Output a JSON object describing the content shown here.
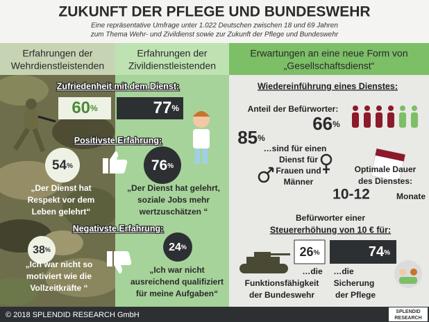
{
  "header": {
    "title": "ZUKUNFT DER PFLEGE UND BUNDESWEHR",
    "subtitle": [
      "Eine repräsentative Umfrage unter 1.022 Deutschen zwischen 18 und 69 Jahren",
      "zum Thema Wehr- und Zivildienst sowie zur Zukunft der Pflege und Bundeswehr"
    ]
  },
  "columns": [
    [
      "Erfahrungen der",
      "Wehrdienstleistenden"
    ],
    [
      "Erfahrungen der",
      "Zivildienstleistenden"
    ],
    [
      "Erwartungen an eine neue Form von",
      "„Gesellschaftsdienst“"
    ]
  ],
  "experience": {
    "satisfaction": {
      "label": "Zufriedenheit mit dem Dienst:",
      "wehr": "60",
      "zivil": "77",
      "unit": "%"
    },
    "positive": {
      "label": "Positivste Erfahrung:",
      "wehr": "54",
      "zivil": "76",
      "wehr_quote": [
        "„Der Dienst hat",
        "Respekt vor dem",
        "Leben gelehrt“"
      ],
      "zivil_quote": [
        "„Der Dienst hat gelehrt,",
        "soziale Jobs mehr",
        "wertzuschätzen “"
      ]
    },
    "negative": {
      "label": "Negativste Erfahrung:",
      "wehr": "38",
      "zivil": "24",
      "wehr_quote": [
        "„Ich war nicht so",
        "motiviert wie die",
        "Vollzeitkräfte “"
      ],
      "zivil_quote": [
        "„Ich war nicht",
        "ausreichend qualifiziert",
        "für meine Aufgaben“"
      ]
    }
  },
  "expectations": {
    "reintroduction": "Wiedereinführung eines Dienstes:",
    "supporters_label": "Anteil der Befürworter:",
    "supporters": "66",
    "both_genders": "85",
    "both_genders_text": [
      "…sind für einen",
      "Dienst für",
      "Frauen und",
      "Männer"
    ],
    "duration_label": [
      "Optimale Dauer",
      "des Dienstes:"
    ],
    "duration": "10-12",
    "duration_unit": "Monate",
    "tax_label": [
      "Befürworter einer",
      "Steuererhöhung von 10 € für:"
    ],
    "tax_army": "26",
    "tax_care": "74",
    "tax_army_text": [
      "…die",
      "Funktionsfähigkeit",
      "der Bundeswehr"
    ],
    "tax_care_text": [
      "…die",
      "Sicherung",
      "der Pflege"
    ]
  },
  "footer": {
    "copyright": "© 2018 SPLENDID RESEARCH GmbH",
    "logo": [
      "SPLENDID",
      "RESEARCH"
    ]
  }
}
